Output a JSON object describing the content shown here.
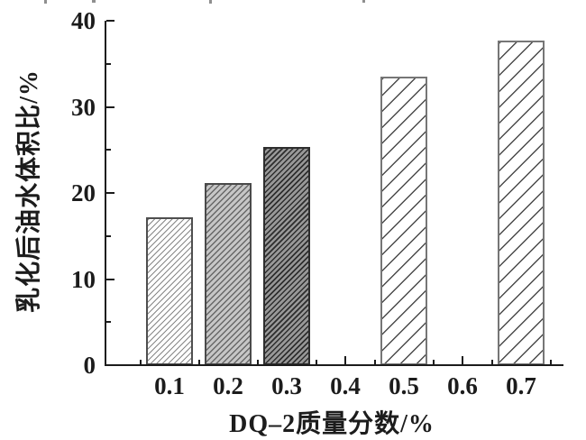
{
  "chart_data": {
    "type": "bar",
    "title": "",
    "xlabel": "DQ–2质量分数/%",
    "ylabel": "乳化后油水体积比/%",
    "categories": [
      "0.1",
      "0.2",
      "0.3",
      "0.4",
      "0.5",
      "0.6",
      "0.7"
    ],
    "values": [
      17.2,
      21.2,
      25.3,
      null,
      33.5,
      null,
      37.7
    ],
    "ylim": [
      0,
      40
    ],
    "y_major_ticks": [
      0,
      10,
      20,
      30,
      40
    ],
    "y_tick_labels": [
      "0",
      "10",
      "20",
      "30",
      "40"
    ],
    "y_minor_ticks": [
      5,
      15,
      25,
      35
    ],
    "x_minor_positions": [
      0.05,
      0.15,
      0.25,
      0.35,
      0.45,
      0.55,
      0.65,
      0.75
    ],
    "bar_hatch": [
      "fine-light",
      "fine-gray",
      "fine-dark",
      null,
      "wide",
      null,
      "wide"
    ],
    "grid": false,
    "legend": null,
    "axes_style": "left-bottom spines only, ticks pointing inward",
    "colors": {
      "background": "#ffffff",
      "axis": "#1c1c1c",
      "text": "#1c1c1c",
      "hatch_light_line": "#878787",
      "hatch_gray_bg": "#c6c6c6",
      "hatch_dark_bg": "#989898",
      "hatch_dark_line": "#2e2e2e"
    }
  }
}
